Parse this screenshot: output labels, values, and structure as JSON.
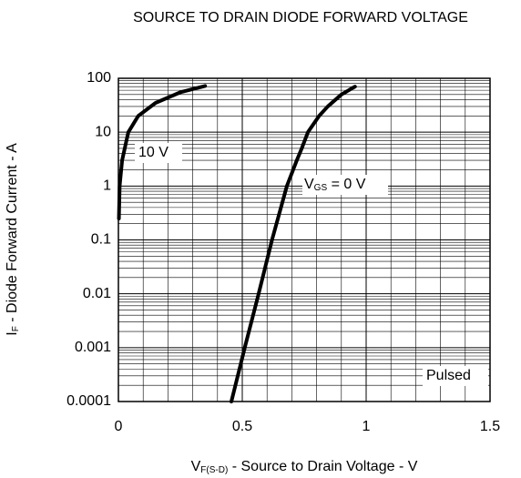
{
  "chart_data": {
    "type": "line",
    "title": "SOURCE TO DRAIN DIODE FORWARD VOLTAGE",
    "x_label": {
      "main": "V",
      "sub": "F(S-D)",
      "rest": " - Source to Drain Voltage - V"
    },
    "y_label": {
      "main": "I",
      "sub": "F",
      "rest": " - Diode Forward Current - A"
    },
    "xlim": [
      0,
      1.5
    ],
    "xticks": [
      0,
      0.5,
      1,
      1.5
    ],
    "ylim": [
      0.0001,
      100
    ],
    "yticks": [
      100,
      10,
      1,
      0.1,
      0.01,
      0.001,
      0.0001
    ],
    "log_y": true,
    "grid": true,
    "series": [
      {
        "name": "10 V",
        "color": "#000000",
        "x": [
          0.002,
          0.005,
          0.015,
          0.04,
          0.08,
          0.15,
          0.25,
          0.35
        ],
        "values": [
          0.25,
          1,
          3,
          10,
          20,
          35,
          55,
          72
        ]
      },
      {
        "label": {
          "main": "V",
          "sub": "GS",
          "rest": " = 0 V"
        },
        "color": "#000000",
        "x": [
          0.456,
          0.51,
          0.566,
          0.62,
          0.68,
          0.72,
          0.74,
          0.765,
          0.81,
          0.845,
          0.9,
          0.955
        ],
        "values": [
          0.0001,
          0.001,
          0.01,
          0.1,
          1,
          3,
          5,
          10,
          20,
          30,
          50,
          70
        ]
      }
    ],
    "annotation": "Pulsed"
  }
}
